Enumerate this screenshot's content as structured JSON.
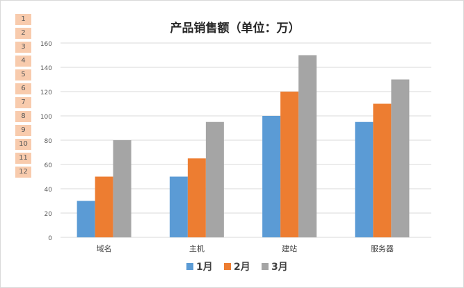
{
  "row_numbers": [
    "1",
    "2",
    "3",
    "4",
    "5",
    "6",
    "7",
    "8",
    "9",
    "10",
    "11",
    "12"
  ],
  "chart_data": {
    "type": "bar",
    "title": "产品销售额（单位：万）",
    "categories": [
      "域名",
      "主机",
      "建站",
      "服务器"
    ],
    "series": [
      {
        "name": "1月",
        "values": [
          30,
          50,
          100,
          95
        ],
        "color": "#5b9bd5"
      },
      {
        "name": "2月",
        "values": [
          50,
          65,
          120,
          110
        ],
        "color": "#ed7d31"
      },
      {
        "name": "3月",
        "values": [
          80,
          95,
          150,
          130
        ],
        "color": "#a5a5a5"
      }
    ],
    "ylim": [
      0,
      160
    ],
    "yticks": [
      0,
      20,
      40,
      60,
      80,
      100,
      120,
      140,
      160
    ],
    "grid": true,
    "legend": "bottom",
    "xlabel": "",
    "ylabel": ""
  }
}
